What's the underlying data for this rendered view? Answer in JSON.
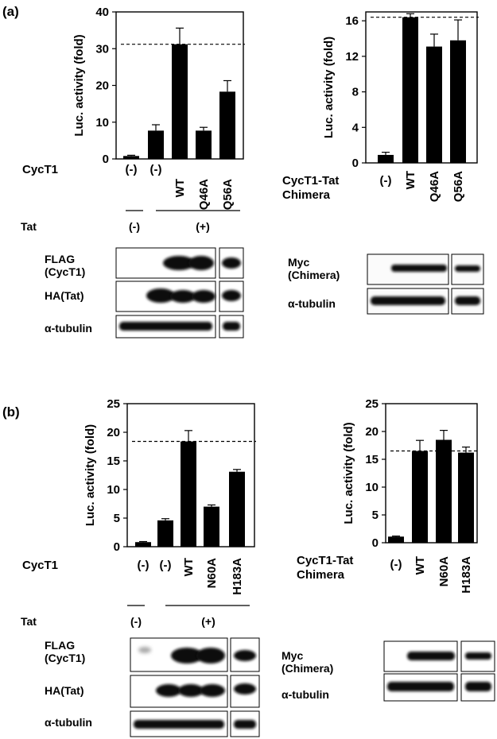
{
  "panel_labels": [
    "(a)",
    "(b)"
  ],
  "chart_data": [
    {
      "type": "bar",
      "ylabel": "Luc. activity (fold)",
      "ylim": [
        0,
        40
      ],
      "yticks": [
        0,
        10,
        20,
        30,
        40
      ],
      "categories": [
        "",
        "(-)",
        "WT",
        "Q46A",
        "Q56A"
      ],
      "values": [
        0.8,
        7.7,
        31.2,
        7.7,
        18.3
      ],
      "errors": [
        0.2,
        1.6,
        4.4,
        0.9,
        3.0
      ],
      "reference_line": 31.2,
      "row_label": "CycT1",
      "first_category_label": "(-)",
      "tat_label": "Tat",
      "tat_groups": [
        "(-)",
        "(+)"
      ]
    },
    {
      "type": "bar",
      "ylabel": "Luc. activity (fold)",
      "ylim": [
        0,
        17
      ],
      "yticks": [
        0,
        4,
        8,
        12,
        16
      ],
      "categories": [
        "(-)",
        "WT",
        "Q46A",
        "Q56A"
      ],
      "values": [
        0.9,
        16.4,
        13.1,
        13.8
      ],
      "errors": [
        0.3,
        0.4,
        1.4,
        2.3
      ],
      "reference_line": 16.4,
      "row_label": [
        "CycT1-Tat",
        "Chimera"
      ]
    },
    {
      "type": "bar",
      "ylabel": "Luc. activity (fold)",
      "ylim": [
        0,
        25
      ],
      "yticks": [
        0,
        5,
        10,
        15,
        20,
        25
      ],
      "categories": [
        "",
        "(-)",
        "WT",
        "N60A",
        "H183A"
      ],
      "values": [
        0.8,
        4.6,
        18.4,
        7.0,
        13.1
      ],
      "errors": [
        0.1,
        0.3,
        1.9,
        0.3,
        0.4
      ],
      "reference_line": 18.4,
      "row_label": "CycT1",
      "first_category_label": "(-)",
      "tat_label": "Tat",
      "tat_groups": [
        "(-)",
        "(+)"
      ]
    },
    {
      "type": "bar",
      "ylabel": "Luc. activity (fold)",
      "ylim": [
        0,
        25
      ],
      "yticks": [
        0,
        5,
        10,
        15,
        20,
        25
      ],
      "categories": [
        "(-)",
        "WT",
        "N60A",
        "H183A"
      ],
      "values": [
        1.1,
        16.5,
        18.5,
        16.2
      ],
      "errors": [
        0.1,
        1.9,
        1.7,
        1.0
      ],
      "reference_line": 16.5,
      "row_label": [
        "CycT1-Tat",
        "Chimera"
      ]
    }
  ],
  "blots": {
    "a_left": [
      "FLAG",
      "(CycT1)",
      "HA(Tat)",
      "α-tubulin"
    ],
    "a_right": [
      "Myc",
      "(Chimera)",
      "α-tubulin"
    ],
    "b_left": [
      "FLAG",
      "(CycT1)",
      "HA(Tat)",
      "α-tubulin"
    ],
    "b_right": [
      "Myc",
      "(Chimera)",
      "α-tubulin"
    ]
  }
}
